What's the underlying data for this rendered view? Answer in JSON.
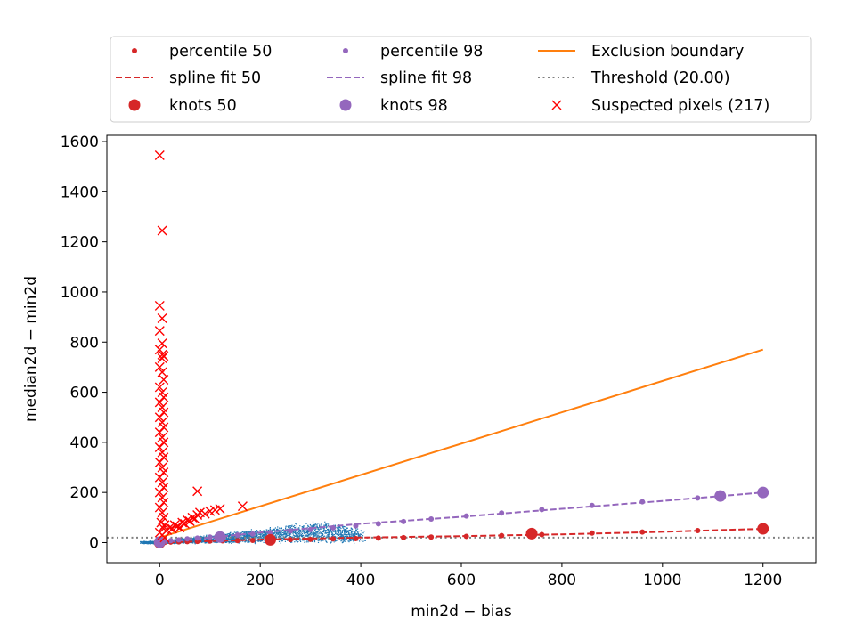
{
  "chart_data": {
    "type": "scatter",
    "title": "",
    "xlabel": "min2d − bias",
    "ylabel": "median2d − min2d",
    "xlim": [
      -105,
      1305
    ],
    "ylim": [
      -80,
      1625
    ],
    "xticks": [
      0,
      200,
      400,
      600,
      800,
      1000,
      1200
    ],
    "yticks": [
      0,
      200,
      400,
      600,
      800,
      1000,
      1200,
      1400,
      1600
    ],
    "grid": false,
    "legend": {
      "placement": "top-above",
      "columns": 3,
      "entries": [
        {
          "key": "p50",
          "label": "percentile 50",
          "marker": "dot-small",
          "color": "#d62728"
        },
        {
          "key": "s50",
          "label": "spline fit 50",
          "marker": "dashed-line",
          "color": "#d62728"
        },
        {
          "key": "k50",
          "label": "knots 50",
          "marker": "dot-large",
          "color": "#d62728"
        },
        {
          "key": "p98",
          "label": "percentile 98",
          "marker": "dot-small",
          "color": "#9467bd"
        },
        {
          "key": "s98",
          "label": "spline fit 98",
          "marker": "dashed-line",
          "color": "#9467bd"
        },
        {
          "key": "k98",
          "label": "knots 98",
          "marker": "dot-large",
          "color": "#9467bd"
        },
        {
          "key": "excl",
          "label": "Exclusion boundary",
          "marker": "solid-line",
          "color": "#ff7f0e"
        },
        {
          "key": "thr",
          "label": "Threshold (20.00)",
          "marker": "dotted-line",
          "color": "#808080"
        },
        {
          "key": "sus",
          "label": "Suspected pixels (217)",
          "marker": "x",
          "color": "#ff0000"
        }
      ]
    },
    "pixels_cloud": {
      "color": "#1f77b4",
      "description_points": [
        [
          -30,
          5
        ],
        [
          0,
          10
        ],
        [
          50,
          20
        ],
        [
          100,
          30
        ],
        [
          150,
          40
        ],
        [
          200,
          50
        ],
        [
          250,
          60
        ],
        [
          300,
          60
        ],
        [
          350,
          50
        ],
        [
          400,
          30
        ],
        [
          500,
          10
        ]
      ]
    },
    "series": {
      "percentile50": {
        "color": "#d62728",
        "x": [
          0,
          10,
          22,
          38,
          55,
          75,
          100,
          125,
          155,
          185,
          220,
          260,
          300,
          345,
          390,
          435,
          485,
          540,
          610,
          680,
          760,
          860,
          960,
          1070,
          1200
        ],
        "y": [
          0.5,
          1,
          2,
          3,
          4,
          5,
          6,
          7,
          8,
          9,
          11,
          12,
          13,
          15,
          16,
          18,
          20,
          22,
          25,
          28,
          32,
          38,
          42,
          48,
          55
        ]
      },
      "percentile98": {
        "color": "#9467bd",
        "x": [
          0,
          10,
          22,
          38,
          55,
          75,
          100,
          125,
          155,
          185,
          220,
          260,
          300,
          345,
          390,
          435,
          485,
          540,
          610,
          680,
          760,
          860,
          960,
          1070,
          1200
        ],
        "y": [
          2,
          5,
          8,
          11,
          15,
          18,
          22,
          25,
          30,
          34,
          40,
          46,
          52,
          59,
          67,
          75,
          84,
          94,
          106,
          118,
          132,
          148,
          163,
          178,
          200
        ]
      },
      "spline50": {
        "color": "#d62728",
        "x": [
          0,
          200,
          400,
          600,
          800,
          1000,
          1200
        ],
        "y": [
          0,
          12,
          20,
          26,
          33,
          43,
          55
        ]
      },
      "spline98": {
        "color": "#9467bd",
        "x": [
          0,
          200,
          400,
          600,
          800,
          1000,
          1200
        ],
        "y": [
          0,
          40,
          75,
          103,
          135,
          166,
          200
        ]
      },
      "knots50": {
        "color": "#d62728",
        "x": [
          0,
          220,
          740,
          1200
        ],
        "y": [
          0,
          11,
          36,
          55
        ]
      },
      "knots98": {
        "color": "#9467bd",
        "x": [
          0,
          120,
          1115,
          1200
        ],
        "y": [
          2,
          22,
          186,
          200
        ]
      },
      "exclusion_boundary": {
        "color": "#ff7f0e",
        "x": [
          0,
          1200
        ],
        "y": [
          20,
          770
        ]
      },
      "threshold": {
        "color": "#808080",
        "y": 20
      },
      "suspected": {
        "color": "#ff0000",
        "x": [
          0,
          5,
          0,
          5,
          0,
          5,
          0,
          5,
          5,
          8,
          0,
          5,
          8,
          0,
          5,
          8,
          0,
          5,
          8,
          0,
          5,
          8,
          0,
          5,
          8,
          0,
          5,
          8,
          0,
          5,
          8,
          0,
          5,
          8,
          0,
          5,
          8,
          0,
          5,
          8,
          3,
          6,
          10,
          15,
          20,
          25,
          30,
          35,
          40,
          45,
          50,
          55,
          60,
          65,
          70,
          75,
          80,
          90,
          100,
          110,
          120,
          165,
          75,
          0,
          5,
          10
        ],
        "y": [
          1545,
          1245,
          945,
          895,
          845,
          795,
          770,
          750,
          735,
          745,
          700,
          680,
          650,
          620,
          600,
          580,
          560,
          540,
          520,
          500,
          480,
          460,
          440,
          420,
          400,
          380,
          360,
          340,
          320,
          300,
          280,
          260,
          240,
          220,
          200,
          180,
          160,
          140,
          120,
          100,
          80,
          60,
          70,
          50,
          60,
          55,
          70,
          65,
          60,
          80,
          75,
          90,
          85,
          100,
          95,
          110,
          120,
          115,
          125,
          130,
          135,
          145,
          205,
          40,
          30,
          20
        ]
      }
    }
  }
}
